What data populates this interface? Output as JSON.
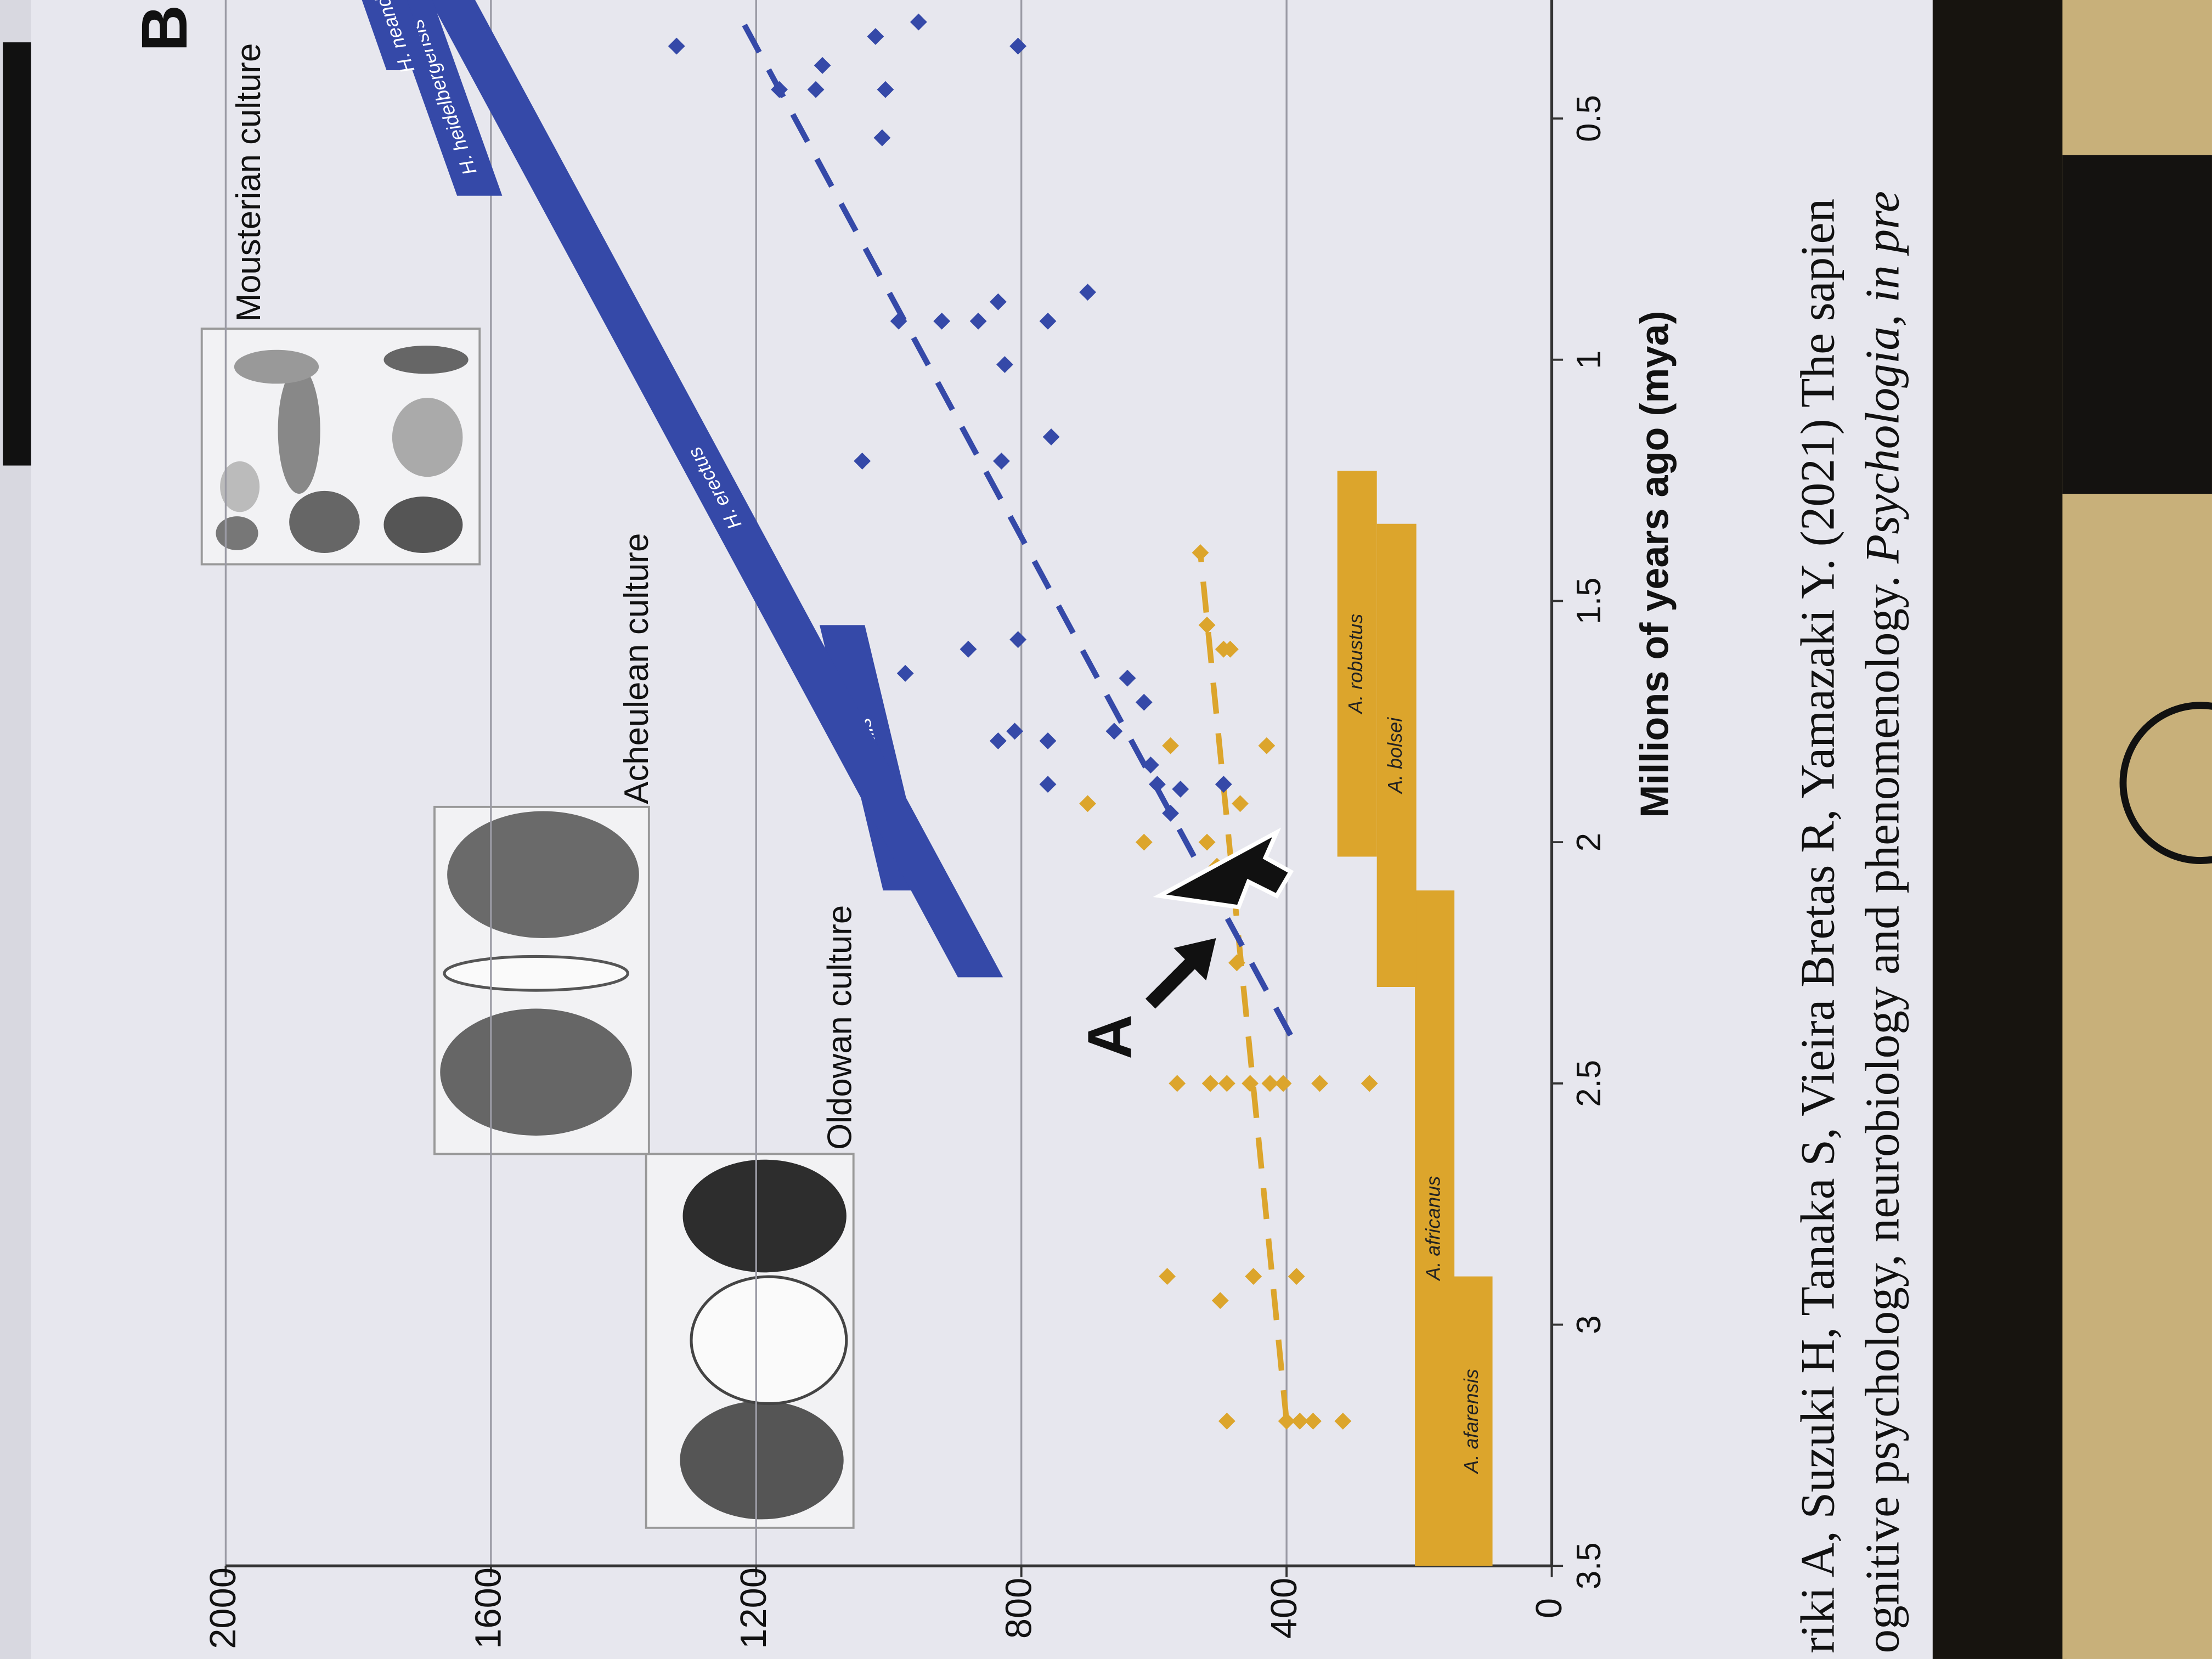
{
  "panel_label": "B",
  "citation": [
    "riki A, Suzuki H, Tanaka S, Vieira Bretas R, Yamazaki Y. (2021) The sapien",
    "ognitive psychology, neurobiology and phenomenology. ",
    "Psychologia, in pre"
  ],
  "chart_data": {
    "type": "scatter",
    "xlabel": "Millions of years ago (mya)",
    "xlim": [
      3.5,
      0
    ],
    "xticks": [
      3.5,
      3,
      2.5,
      2,
      1.5,
      1,
      0.5
    ],
    "ylim": [
      0,
      2000
    ],
    "yticks": [
      0,
      400,
      800,
      1200,
      1600,
      2000
    ],
    "grid": true,
    "series": [
      {
        "color": "#dca52c",
        "x": [
          3.2,
          3.2,
          3.2,
          3.2,
          3.2,
          2.9,
          2.95,
          2.9,
          2.9,
          2.5,
          2.5,
          2.5,
          2.5,
          2.5,
          2.5,
          2.5,
          2.5,
          2.25,
          2.05,
          2.0,
          2.0,
          1.92,
          1.92,
          1.8,
          1.8,
          1.6,
          1.6,
          1.55,
          1.4
        ],
        "values": [
          490,
          400,
          380,
          360,
          315,
          580,
          500,
          450,
          385,
          565,
          515,
          490,
          455,
          425,
          405,
          350,
          275,
          475,
          505,
          615,
          520,
          700,
          470,
          575,
          430,
          495,
          485,
          520,
          530
        ]
      },
      {
        "color": "#3549a8",
        "x": [
          1.88,
          1.79,
          1.77,
          1.79,
          1.77,
          1.84,
          1.88,
          1.89,
          1.88,
          1.94,
          1.66,
          1.71,
          1.65,
          1.6,
          1.58,
          1.21,
          1.21,
          1.16,
          1.01,
          0.92,
          0.88,
          0.92,
          0.92,
          0.92,
          0.86,
          0.54,
          0.44,
          0.44,
          0.44,
          0.39,
          0.35,
          0.35,
          0.3,
          0.33
        ],
        "values": [
          760,
          760,
          810,
          835,
          660,
          605,
          595,
          560,
          495,
          575,
          640,
          615,
          975,
          880,
          805,
          1040,
          830,
          755,
          825,
          760,
          835,
          865,
          920,
          985,
          700,
          1010,
          1110,
          1005,
          1165,
          1100,
          1320,
          805,
          955,
          1020
        ]
      }
    ],
    "trend_lines": [
      {
        "color": "#dca52c",
        "x": [
          3.2,
          1.4
        ],
        "values": [
          400,
          530
        ]
      },
      {
        "color": "#3549a8",
        "x": [
          2.4,
          0.3
        ],
        "values": [
          394,
          1220
        ]
      }
    ],
    "species": [
      {
        "name": "A. afarensis",
        "color": "#dca52c",
        "start": 3.5,
        "end": 2.9
      },
      {
        "name": "A. africanus",
        "color": "#dca52c",
        "start": 3.5,
        "end": 2.1
      },
      {
        "name": "A. bolsei",
        "color": "#dca52c",
        "start": 2.3,
        "end": 1.34
      },
      {
        "name": "A. robustus",
        "color": "#dca52c",
        "start": 2.03,
        "end": 1.23
      },
      {
        "name": "H. habilis",
        "color": "#3549a8",
        "start": 2.1,
        "end": 1.55
      },
      {
        "name": "H. erectus",
        "color": "#3549a8",
        "start": 2.28,
        "end": 0.25
      },
      {
        "name": "H. heidelbergensis",
        "color": "#3549a8",
        "start": 0.66,
        "end": 0.25
      },
      {
        "name": "H. neand",
        "color": "#3549a8",
        "start": 0.4,
        "end": 0.25
      }
    ],
    "cultures": [
      "Oldowan culture",
      "Acheulean culture",
      "Mousterian culture"
    ],
    "annotation": "A"
  }
}
